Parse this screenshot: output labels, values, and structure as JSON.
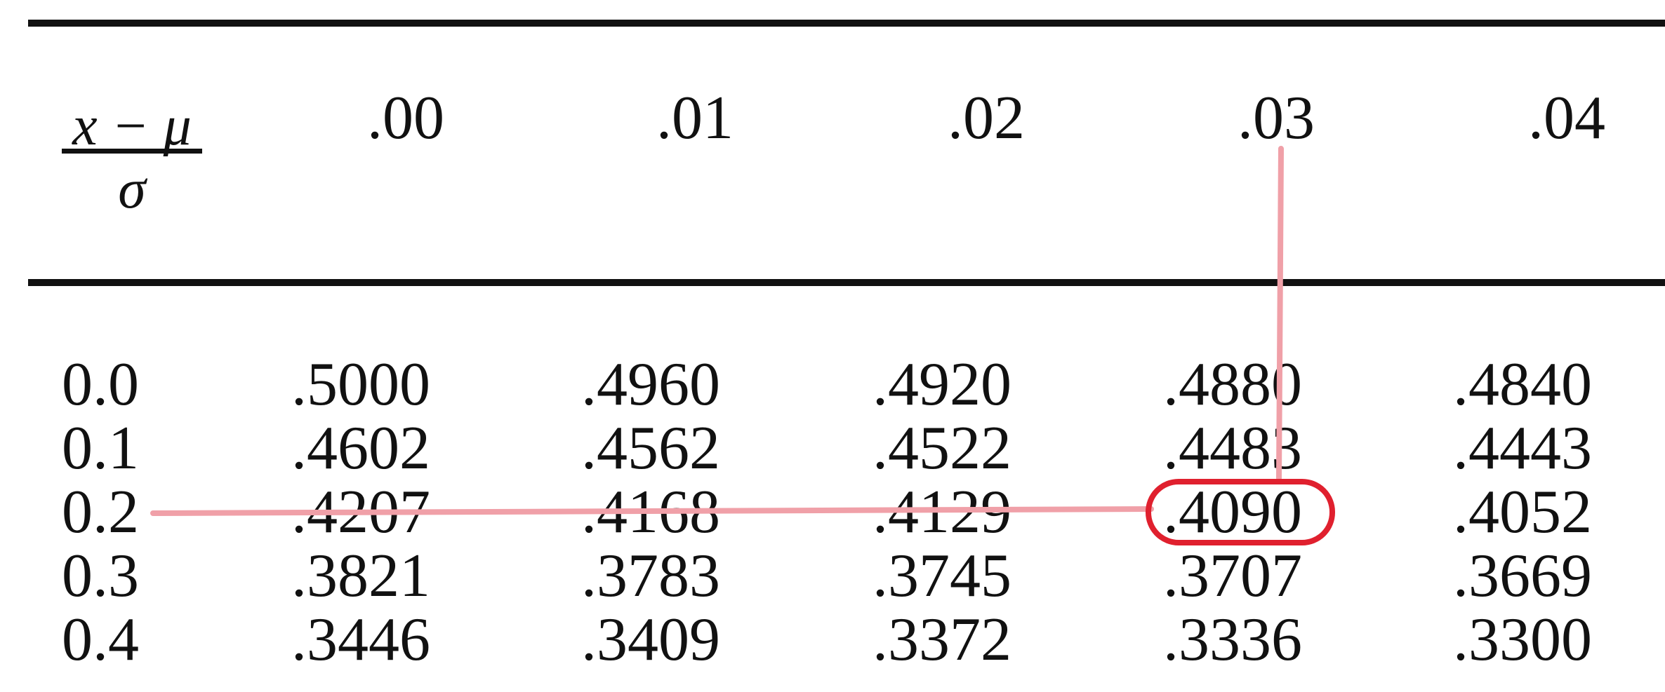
{
  "table": {
    "header_formula": {
      "numerator": "x − μ",
      "denominator": "σ"
    },
    "columns": [
      ".00",
      ".01",
      ".02",
      ".03",
      ".04"
    ],
    "rows": [
      {
        "label": "0.0",
        "cells": [
          ".5000",
          ".4960",
          ".4920",
          ".4880",
          ".4840"
        ]
      },
      {
        "label": "0.1",
        "cells": [
          ".4602",
          ".4562",
          ".4522",
          ".4483",
          ".4443"
        ]
      },
      {
        "label": "0.2",
        "cells": [
          ".4207",
          ".4168",
          ".4129",
          ".4090",
          ".4052"
        ]
      },
      {
        "label": "0.3",
        "cells": [
          ".3821",
          ".3783",
          ".3745",
          ".3707",
          ".3669"
        ]
      },
      {
        "label": "0.4",
        "cells": [
          ".3446",
          ".3409",
          ".3372",
          ".3336",
          ".3300"
        ]
      }
    ]
  },
  "highlight": {
    "row_label": "0.2",
    "column": ".03",
    "value": ".4090"
  },
  "colors": {
    "ink": "#111111",
    "guide_line": "#f0a0a8",
    "circle": "#e0202e"
  }
}
